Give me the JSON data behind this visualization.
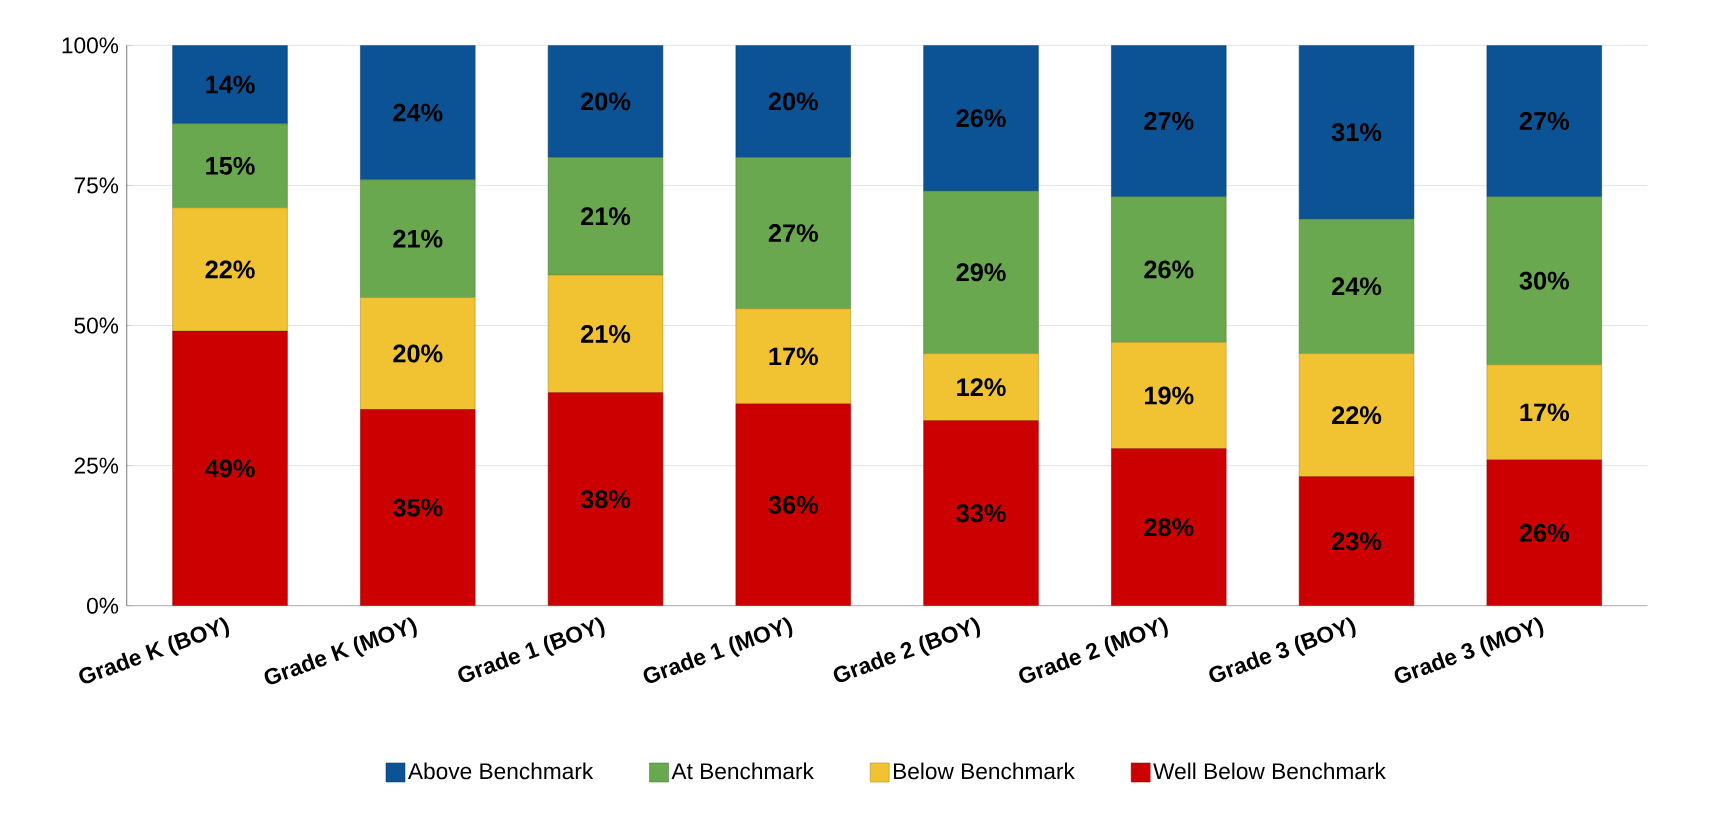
{
  "chart_data": {
    "type": "bar",
    "stacked": true,
    "categories": [
      "Grade K (BOY)",
      "Grade K (MOY)",
      "Grade 1 (BOY)",
      "Grade 1 (MOY)",
      "Grade 2 (BOY)",
      "Grade 2 (MOY)",
      "Grade 3 (BOY)",
      "Grade 3 (MOY)"
    ],
    "series": [
      {
        "name": "Well Below Benchmark",
        "color": "#cc0000",
        "values": [
          49,
          35,
          38,
          36,
          33,
          28,
          23,
          26
        ],
        "value_labels": [
          "49%",
          "35%",
          "38%",
          "36%",
          "33%",
          "28%",
          "23%",
          "26%"
        ]
      },
      {
        "name": "Below Benchmark",
        "color": "#f1c232",
        "values": [
          22,
          20,
          21,
          17,
          12,
          19,
          22,
          17
        ],
        "value_labels": [
          "22%",
          "20%",
          "21%",
          "17%",
          "12%",
          "19%",
          "22%",
          "17%"
        ]
      },
      {
        "name": "At Benchmark",
        "color": "#6aa84f",
        "values": [
          15,
          21,
          21,
          27,
          29,
          26,
          24,
          30
        ],
        "value_labels": [
          "15%",
          "21%",
          "21%",
          "27%",
          "29%",
          "26%",
          "24%",
          "30%"
        ]
      },
      {
        "name": "Above Benchmark",
        "color": "#0b5394",
        "values": [
          14,
          24,
          20,
          20,
          26,
          27,
          31,
          27
        ],
        "value_labels": [
          "14%",
          "24%",
          "20%",
          "20%",
          "26%",
          "27%",
          "31%",
          "27%"
        ]
      }
    ],
    "ylim": [
      0,
      100
    ],
    "yticks": [
      {
        "value": 0,
        "label": "0%"
      },
      {
        "value": 25,
        "label": "25%"
      },
      {
        "value": 50,
        "label": "50%"
      },
      {
        "value": 75,
        "label": "75%"
      },
      {
        "value": 100,
        "label": "100%"
      }
    ],
    "grid": "y",
    "legend": "bottom"
  }
}
